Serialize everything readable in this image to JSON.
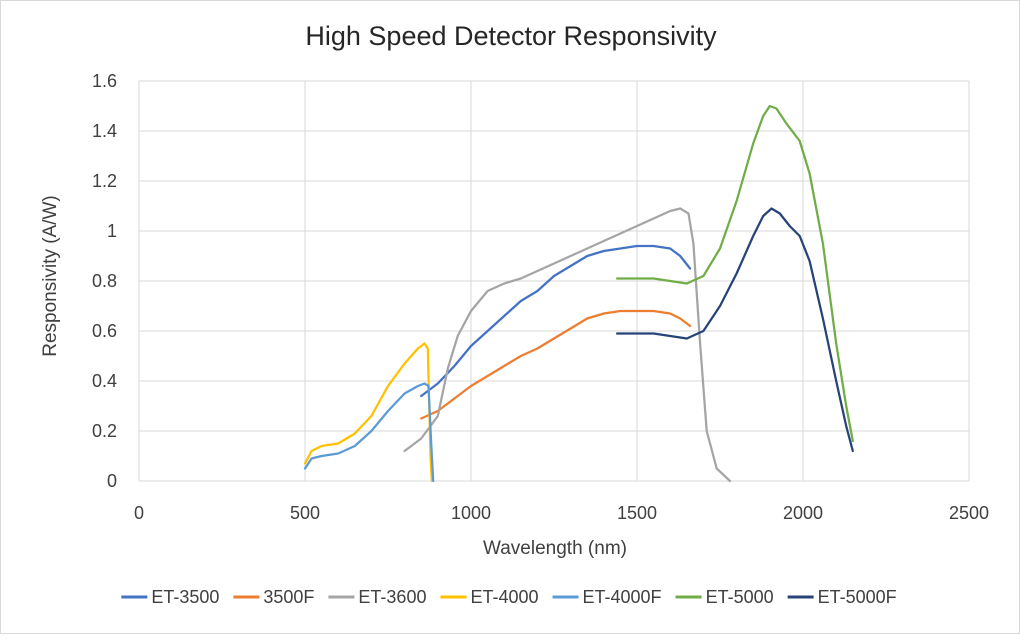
{
  "chart_data": {
    "type": "line",
    "title": "High Speed Detector Responsivity",
    "xlabel": "Wavelength (nm)",
    "ylabel": "Responsivity (A/W)",
    "xlim": [
      0,
      2500
    ],
    "ylim": [
      0,
      1.6
    ],
    "xticks": [
      0,
      500,
      1000,
      1500,
      2000,
      2500
    ],
    "yticks": [
      "0",
      "0.2",
      "0.4",
      "0.6",
      "0.8",
      "1",
      "1.2",
      "1.4",
      "1.6"
    ],
    "grid": true,
    "legend_position": "bottom",
    "series": [
      {
        "name": "ET-3500",
        "color": "#4472c4",
        "points": [
          [
            850,
            0.34
          ],
          [
            900,
            0.39
          ],
          [
            950,
            0.46
          ],
          [
            1000,
            0.54
          ],
          [
            1050,
            0.6
          ],
          [
            1100,
            0.66
          ],
          [
            1150,
            0.72
          ],
          [
            1200,
            0.76
          ],
          [
            1250,
            0.82
          ],
          [
            1300,
            0.86
          ],
          [
            1350,
            0.9
          ],
          [
            1400,
            0.92
          ],
          [
            1450,
            0.93
          ],
          [
            1500,
            0.94
          ],
          [
            1550,
            0.94
          ],
          [
            1600,
            0.93
          ],
          [
            1630,
            0.9
          ],
          [
            1660,
            0.85
          ]
        ]
      },
      {
        "name": "3500F",
        "color": "#ed7d31",
        "points": [
          [
            850,
            0.25
          ],
          [
            900,
            0.28
          ],
          [
            950,
            0.33
          ],
          [
            1000,
            0.38
          ],
          [
            1050,
            0.42
          ],
          [
            1100,
            0.46
          ],
          [
            1150,
            0.5
          ],
          [
            1200,
            0.53
          ],
          [
            1250,
            0.57
          ],
          [
            1300,
            0.61
          ],
          [
            1350,
            0.65
          ],
          [
            1400,
            0.67
          ],
          [
            1450,
            0.68
          ],
          [
            1500,
            0.68
          ],
          [
            1550,
            0.68
          ],
          [
            1600,
            0.67
          ],
          [
            1630,
            0.65
          ],
          [
            1660,
            0.62
          ]
        ]
      },
      {
        "name": "ET-3600",
        "color": "#a5a5a5",
        "points": [
          [
            800,
            0.12
          ],
          [
            850,
            0.17
          ],
          [
            900,
            0.26
          ],
          [
            930,
            0.45
          ],
          [
            960,
            0.58
          ],
          [
            1000,
            0.68
          ],
          [
            1050,
            0.76
          ],
          [
            1100,
            0.79
          ],
          [
            1150,
            0.81
          ],
          [
            1200,
            0.84
          ],
          [
            1250,
            0.87
          ],
          [
            1300,
            0.9
          ],
          [
            1350,
            0.93
          ],
          [
            1400,
            0.96
          ],
          [
            1450,
            0.99
          ],
          [
            1500,
            1.02
          ],
          [
            1550,
            1.05
          ],
          [
            1600,
            1.08
          ],
          [
            1630,
            1.09
          ],
          [
            1655,
            1.07
          ],
          [
            1670,
            0.95
          ],
          [
            1690,
            0.55
          ],
          [
            1710,
            0.2
          ],
          [
            1740,
            0.05
          ],
          [
            1780,
            0.0
          ]
        ]
      },
      {
        "name": "ET-4000",
        "color": "#ffc000",
        "points": [
          [
            500,
            0.07
          ],
          [
            520,
            0.12
          ],
          [
            550,
            0.14
          ],
          [
            600,
            0.15
          ],
          [
            650,
            0.19
          ],
          [
            700,
            0.26
          ],
          [
            750,
            0.38
          ],
          [
            800,
            0.47
          ],
          [
            840,
            0.53
          ],
          [
            860,
            0.55
          ],
          [
            870,
            0.53
          ],
          [
            878,
            0.1
          ],
          [
            882,
            0.0
          ]
        ]
      },
      {
        "name": "ET-4000F",
        "color": "#5b9bd5",
        "points": [
          [
            500,
            0.05
          ],
          [
            520,
            0.09
          ],
          [
            550,
            0.1
          ],
          [
            600,
            0.11
          ],
          [
            650,
            0.14
          ],
          [
            700,
            0.2
          ],
          [
            750,
            0.28
          ],
          [
            800,
            0.35
          ],
          [
            840,
            0.38
          ],
          [
            860,
            0.39
          ],
          [
            872,
            0.38
          ],
          [
            880,
            0.15
          ],
          [
            886,
            0.0
          ]
        ]
      },
      {
        "name": "ET-5000",
        "color": "#70ad47",
        "points": [
          [
            1440,
            0.81
          ],
          [
            1500,
            0.81
          ],
          [
            1550,
            0.81
          ],
          [
            1600,
            0.8
          ],
          [
            1650,
            0.79
          ],
          [
            1700,
            0.82
          ],
          [
            1750,
            0.93
          ],
          [
            1800,
            1.12
          ],
          [
            1850,
            1.35
          ],
          [
            1880,
            1.46
          ],
          [
            1900,
            1.5
          ],
          [
            1920,
            1.49
          ],
          [
            1950,
            1.43
          ],
          [
            1990,
            1.36
          ],
          [
            2020,
            1.23
          ],
          [
            2060,
            0.95
          ],
          [
            2100,
            0.55
          ],
          [
            2130,
            0.3
          ],
          [
            2150,
            0.16
          ]
        ]
      },
      {
        "name": "ET-5000F",
        "color": "#264478",
        "points": [
          [
            1440,
            0.59
          ],
          [
            1500,
            0.59
          ],
          [
            1550,
            0.59
          ],
          [
            1600,
            0.58
          ],
          [
            1650,
            0.57
          ],
          [
            1700,
            0.6
          ],
          [
            1750,
            0.7
          ],
          [
            1800,
            0.83
          ],
          [
            1850,
            0.98
          ],
          [
            1880,
            1.06
          ],
          [
            1905,
            1.09
          ],
          [
            1930,
            1.07
          ],
          [
            1960,
            1.02
          ],
          [
            1990,
            0.98
          ],
          [
            2020,
            0.88
          ],
          [
            2060,
            0.65
          ],
          [
            2100,
            0.4
          ],
          [
            2130,
            0.22
          ],
          [
            2150,
            0.12
          ]
        ]
      }
    ]
  }
}
